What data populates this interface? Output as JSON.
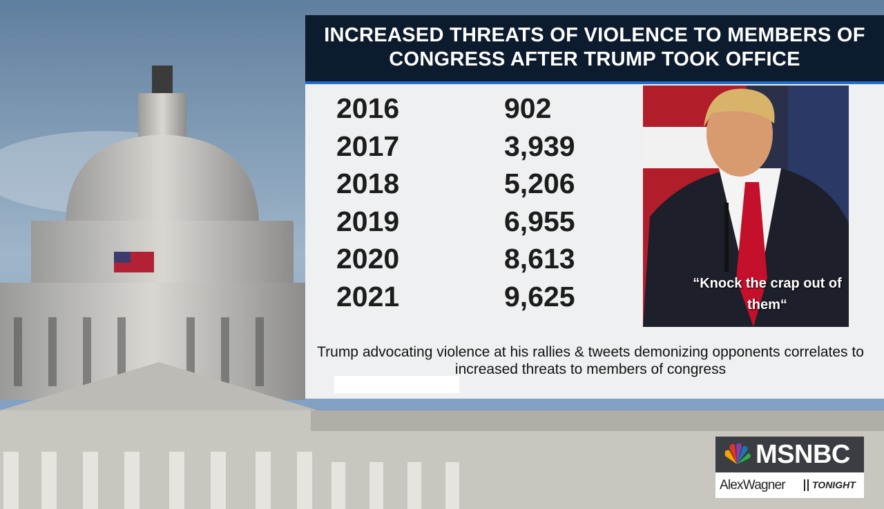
{
  "header": {
    "title": "INCREASED THREATS OF VIOLENCE TO MEMBERS OF CONGRESS AFTER TRUMP TOOK OFFICE"
  },
  "table": {
    "rows": [
      [
        "2016",
        "902"
      ],
      [
        "2017",
        "3,939"
      ],
      [
        "2018",
        "5,206"
      ],
      [
        "2019",
        "6,955"
      ],
      [
        "2020",
        "8,613"
      ],
      [
        "2021",
        "9,625"
      ]
    ]
  },
  "photo": {
    "quote": "“Knock the crap out of them“"
  },
  "caption": "Trump advocating violence at his rallies & tweets demonizing opponents correlates to increased threats to members of congress",
  "logo": {
    "network": "MSNBC",
    "host": "AlexWagner",
    "show": "TONIGHT"
  }
}
